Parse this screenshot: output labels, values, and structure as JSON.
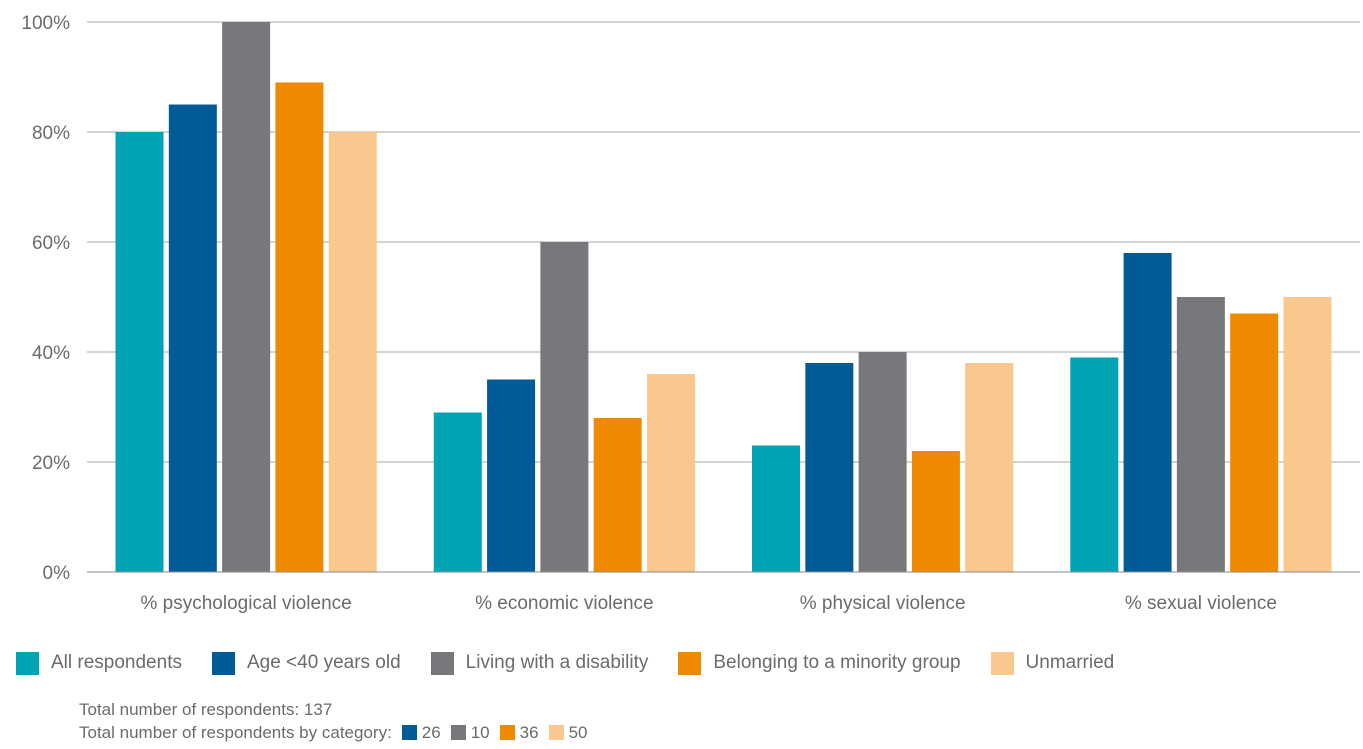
{
  "chart_data": {
    "type": "bar",
    "categories": [
      "% psychological violence",
      "% economic violence",
      "% physical violence",
      "% sexual violence"
    ],
    "series": [
      {
        "name": "All respondents",
        "color": "#00A3B4",
        "values": [
          80,
          29,
          23,
          39
        ]
      },
      {
        "name": "Age <40 years old",
        "color": "#005B96",
        "values": [
          85,
          35,
          38,
          58
        ]
      },
      {
        "name": "Living with a disability",
        "color": "#77787B",
        "values": [
          100,
          60,
          40,
          50
        ]
      },
      {
        "name": "Belonging to a minority group",
        "color": "#EF8A00",
        "values": [
          89,
          28,
          22,
          47
        ]
      },
      {
        "name": "Unmarried",
        "color": "#F8C88E",
        "values": [
          80,
          36,
          38,
          50
        ]
      }
    ],
    "y_ticks": [
      "0%",
      "20%",
      "40%",
      "60%",
      "80%",
      "100%"
    ],
    "ylim": [
      0,
      100
    ],
    "grid": true,
    "legend_position": "bottom"
  },
  "notes": {
    "total_label": "Total number of respondents: 137",
    "by_category_label": "Total number of respondents by category:",
    "category_counts": [
      {
        "value": "26",
        "color": "#005B96"
      },
      {
        "value": "10",
        "color": "#77787B"
      },
      {
        "value": "36",
        "color": "#EF8A00"
      },
      {
        "value": "50",
        "color": "#F8C88E"
      }
    ]
  }
}
